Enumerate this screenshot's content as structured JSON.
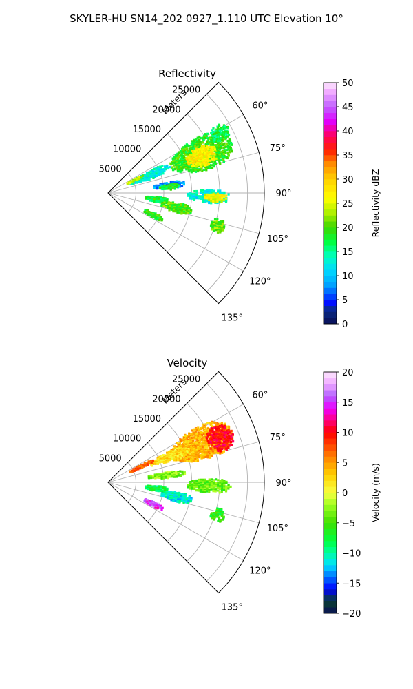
{
  "figure": {
    "title": "SKYLER-HU  SN14_202  0927_1.110 UTC Elevation 10°"
  },
  "chart_data": [
    {
      "type": "heatmap",
      "projection": "polar-sector",
      "title": "Reflectivity",
      "radial_axis_label": "Meters",
      "radial_ticks": [
        5000,
        10000,
        15000,
        20000,
        25000
      ],
      "radial_tick_labels": [
        "5000",
        "10000",
        "15000",
        "20000",
        "25000"
      ],
      "radial_range": [
        0,
        28000
      ],
      "azimuth_range_deg": [
        45,
        135
      ],
      "azimuth_ticks_deg": [
        60,
        75,
        90,
        105,
        120,
        135
      ],
      "azimuth_tick_labels": [
        "60°",
        "75°",
        "90°",
        "105°",
        "120°",
        "135°"
      ],
      "grid": true,
      "colorbar": {
        "label": "Reflectivity dBZ",
        "min": 0,
        "max": 50,
        "ticks": [
          0,
          5,
          10,
          15,
          20,
          25,
          30,
          35,
          40,
          45,
          50
        ],
        "tick_labels": [
          "0",
          "5",
          "10",
          "15",
          "20",
          "25",
          "30",
          "35",
          "40",
          "45",
          "50"
        ]
      },
      "echo_regions": [
        {
          "az": [
            58,
            77
          ],
          "r": [
            12000,
            24000
          ],
          "value": 19
        },
        {
          "az": [
            63,
            75
          ],
          "r": [
            15000,
            21000
          ],
          "value": 27
        },
        {
          "az": [
            58,
            66
          ],
          "r": [
            21000,
            24500
          ],
          "value": 17
        },
        {
          "az": [
            62,
            72
          ],
          "r": [
            4000,
            12000
          ],
          "value": 13
        },
        {
          "az": [
            62,
            66
          ],
          "r": [
            3500,
            7000
          ],
          "value": 24
        },
        {
          "az": [
            80,
            86
          ],
          "r": [
            8000,
            14000
          ],
          "value": 8
        },
        {
          "az": [
            82,
            87
          ],
          "r": [
            9000,
            13000
          ],
          "value": 18
        },
        {
          "az": [
            88,
            96
          ],
          "r": [
            14000,
            22000
          ],
          "value": 13
        },
        {
          "az": [
            90,
            95
          ],
          "r": [
            17000,
            21500
          ],
          "value": 26
        },
        {
          "az": [
            94,
            101
          ],
          "r": [
            6500,
            11000
          ],
          "value": 18
        },
        {
          "az": [
            98,
            106
          ],
          "r": [
            9500,
            15500
          ],
          "value": 20
        },
        {
          "az": [
            113,
            119
          ],
          "r": [
            7000,
            11000
          ],
          "value": 19
        },
        {
          "az": [
            103,
            110
          ],
          "r": [
            19000,
            22000
          ],
          "value": 21
        }
      ]
    },
    {
      "type": "heatmap",
      "projection": "polar-sector",
      "title": "Velocity",
      "radial_axis_label": "Meters",
      "radial_ticks": [
        5000,
        10000,
        15000,
        20000,
        25000
      ],
      "radial_tick_labels": [
        "5000",
        "10000",
        "15000",
        "20000",
        "25000"
      ],
      "radial_range": [
        0,
        28000
      ],
      "azimuth_range_deg": [
        45,
        135
      ],
      "azimuth_ticks_deg": [
        60,
        75,
        90,
        105,
        120,
        135
      ],
      "azimuth_tick_labels": [
        "60°",
        "75°",
        "90°",
        "105°",
        "120°",
        "135°"
      ],
      "grid": true,
      "colorbar": {
        "label": "Velocity (m/s)",
        "min": -20,
        "max": 20,
        "ticks": [
          -20,
          -15,
          -10,
          -5,
          0,
          5,
          10,
          15,
          20
        ],
        "tick_labels": [
          "−20",
          "−15",
          "−10",
          "−5",
          "0",
          "5",
          "10",
          "15",
          "20"
        ]
      },
      "echo_regions": [
        {
          "az": [
            58,
            77
          ],
          "r": [
            12000,
            24000
          ],
          "value": 4
        },
        {
          "az": [
            62,
            75
          ],
          "r": [
            19000,
            24000
          ],
          "value": 10
        },
        {
          "az": [
            63,
            72
          ],
          "r": [
            8000,
            16000
          ],
          "value": 2
        },
        {
          "az": [
            62,
            67
          ],
          "r": [
            4000,
            9000
          ],
          "value": 7
        },
        {
          "az": [
            80,
            86
          ],
          "r": [
            7000,
            14000
          ],
          "value": -3
        },
        {
          "az": [
            88,
            96
          ],
          "r": [
            14000,
            22000
          ],
          "value": -4
        },
        {
          "az": [
            94,
            101
          ],
          "r": [
            6500,
            11000
          ],
          "value": -8
        },
        {
          "az": [
            98,
            106
          ],
          "r": [
            9500,
            15500
          ],
          "value": -11
        },
        {
          "az": [
            113,
            119
          ],
          "r": [
            7000,
            11000
          ],
          "value": 15
        },
        {
          "az": [
            103,
            110
          ],
          "r": [
            19000,
            22000
          ],
          "value": -6
        }
      ]
    }
  ]
}
